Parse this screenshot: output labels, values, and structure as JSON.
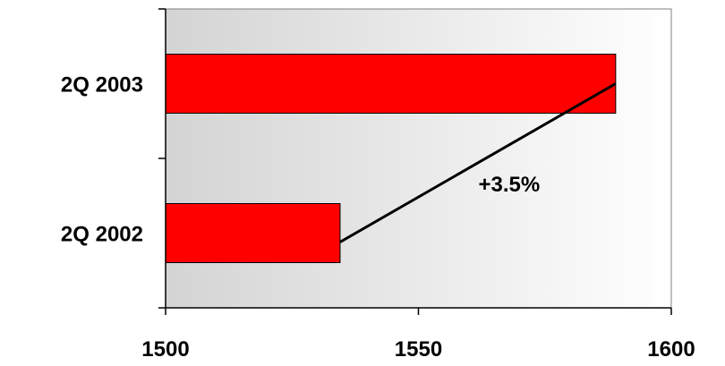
{
  "chart_data": {
    "type": "bar",
    "orientation": "horizontal",
    "categories": [
      "2Q 2002",
      "2Q 2003"
    ],
    "values": [
      1534.5,
      1589
    ],
    "xlim": [
      1500,
      1600
    ],
    "x_ticks": [
      "1500",
      "1550",
      "1600"
    ],
    "title": "",
    "xlabel": "",
    "ylabel": "",
    "grid": false,
    "legend": "none",
    "bar_color": "#ff0000",
    "plot_background": "gradient-gray-to-white",
    "annotation": {
      "text": "+3.5%",
      "from_category": "2Q 2002",
      "to_category": "2Q 2003"
    }
  }
}
